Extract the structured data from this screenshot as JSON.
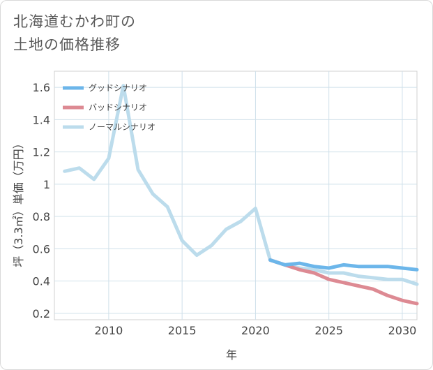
{
  "title_lines": [
    "北海道むかわ町の",
    "土地の価格推移"
  ],
  "chart_data": {
    "type": "line",
    "xlabel": "年",
    "ylabel": "坪（3.3㎡）単価（万円）",
    "xlim": [
      2006.3,
      2031
    ],
    "ylim": [
      0.16,
      1.7
    ],
    "x_ticks": [
      2010,
      2015,
      2020,
      2025,
      2030
    ],
    "y_ticks": [
      0.2,
      0.4,
      0.6,
      0.8,
      1,
      1.2,
      1.4,
      1.6
    ],
    "y_tick_labels": [
      "0.2",
      "0.4",
      "0.6",
      "0.8",
      "1",
      "1.2",
      "1.4",
      "1.6"
    ],
    "grid": true,
    "legend_position": "top-left",
    "series": [
      {
        "name": "グッドシナリオ",
        "color": "#6cb6ea",
        "x": [
          2021,
          2022,
          2023,
          2024,
          2025,
          2026,
          2027,
          2028,
          2029,
          2030,
          2031
        ],
        "values": [
          0.53,
          0.5,
          0.51,
          0.49,
          0.48,
          0.5,
          0.49,
          0.49,
          0.49,
          0.48,
          0.47
        ]
      },
      {
        "name": "バッドシナリオ",
        "color": "#dd8a93",
        "x": [
          2021,
          2022,
          2023,
          2024,
          2025,
          2026,
          2027,
          2028,
          2029,
          2030,
          2031
        ],
        "values": [
          0.53,
          0.5,
          0.47,
          0.45,
          0.41,
          0.39,
          0.37,
          0.35,
          0.31,
          0.28,
          0.26
        ]
      },
      {
        "name": "ノーマルシナリオ",
        "color": "#bcdcec",
        "x": [
          2007,
          2008,
          2009,
          2010,
          2011,
          2012,
          2013,
          2014,
          2015,
          2016,
          2017,
          2018,
          2019,
          2020,
          2021,
          2022,
          2023,
          2024,
          2025,
          2026,
          2027,
          2028,
          2029,
          2030,
          2031
        ],
        "values": [
          1.08,
          1.1,
          1.03,
          1.16,
          1.61,
          1.09,
          0.94,
          0.86,
          0.65,
          0.56,
          0.62,
          0.72,
          0.77,
          0.85,
          0.53,
          0.5,
          0.48,
          0.47,
          0.45,
          0.45,
          0.43,
          0.42,
          0.41,
          0.41,
          0.38
        ]
      }
    ]
  }
}
